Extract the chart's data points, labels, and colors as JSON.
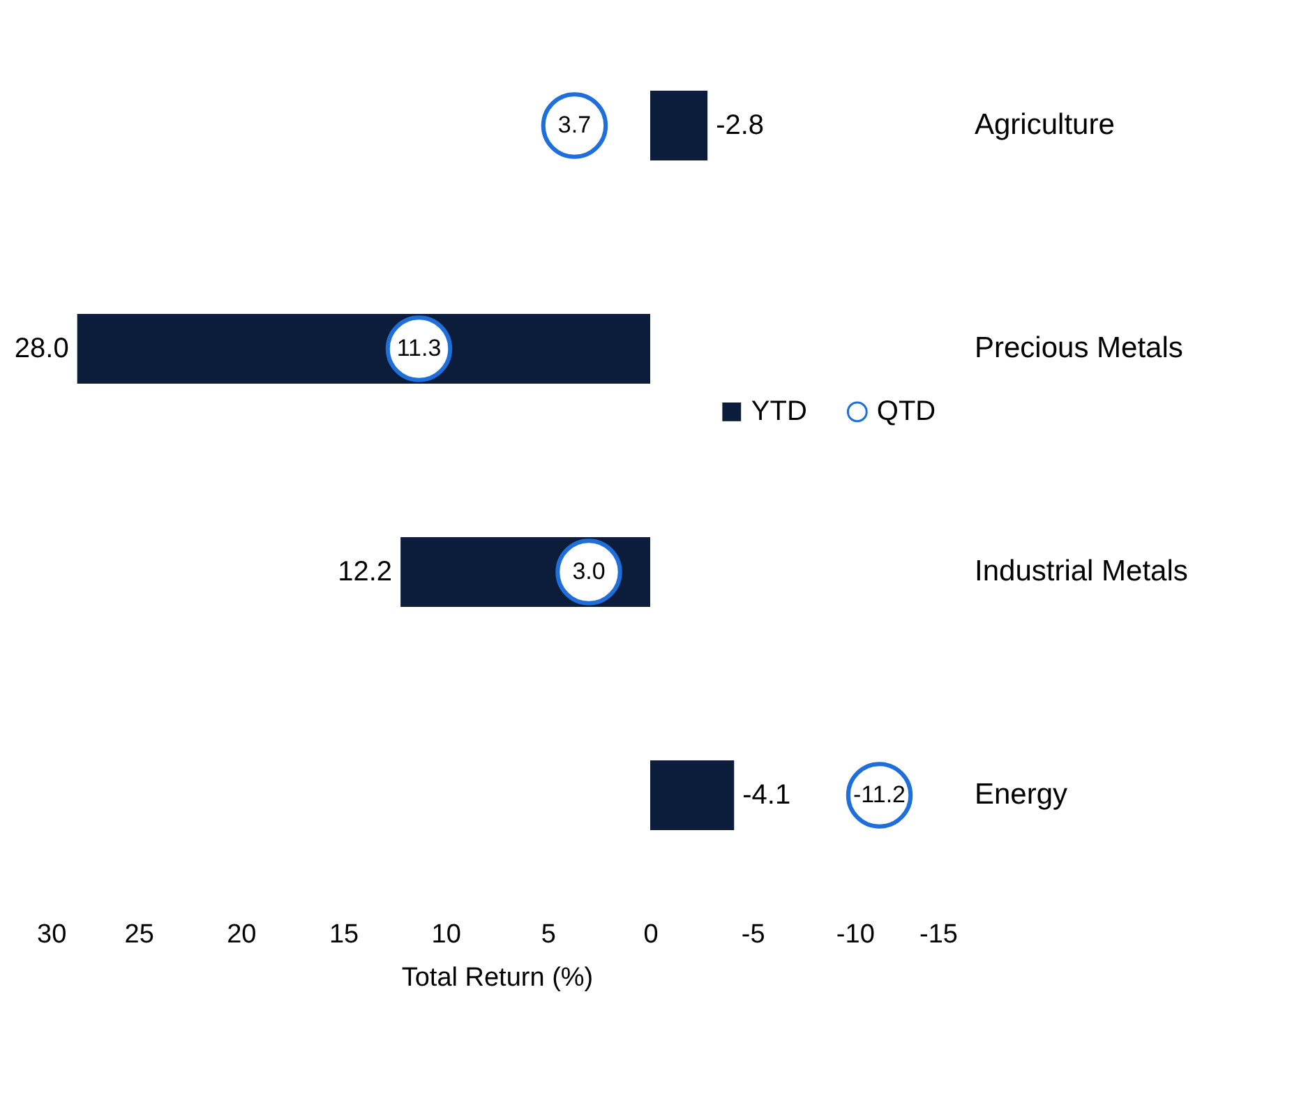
{
  "chart_data": {
    "type": "bar",
    "orientation": "horizontal",
    "xlabel": "Total Return (%)",
    "categories": [
      "Agriculture",
      "Precious Metals",
      "Industrial Metals",
      "Energy"
    ],
    "series": [
      {
        "name": "YTD",
        "color": "#0c1d3b",
        "values": [
          -2.8,
          28.0,
          12.2,
          -4.1
        ],
        "value_labels": [
          "-2.8",
          "28.0",
          "12.2",
          "-4.1"
        ]
      },
      {
        "name": "QTD",
        "type": "scatter",
        "color": "#1e6fd9",
        "values": [
          3.7,
          11.3,
          3.0,
          -11.2
        ],
        "value_labels": [
          "3.7",
          "11.3",
          "3.0",
          "-11.2"
        ]
      }
    ],
    "xlim": [
      30,
      -15
    ],
    "xticks": [
      30,
      25,
      20,
      15,
      10,
      5,
      0,
      -5,
      -10,
      -15
    ],
    "marker": "circle",
    "legend": "center",
    "grid": false
  }
}
